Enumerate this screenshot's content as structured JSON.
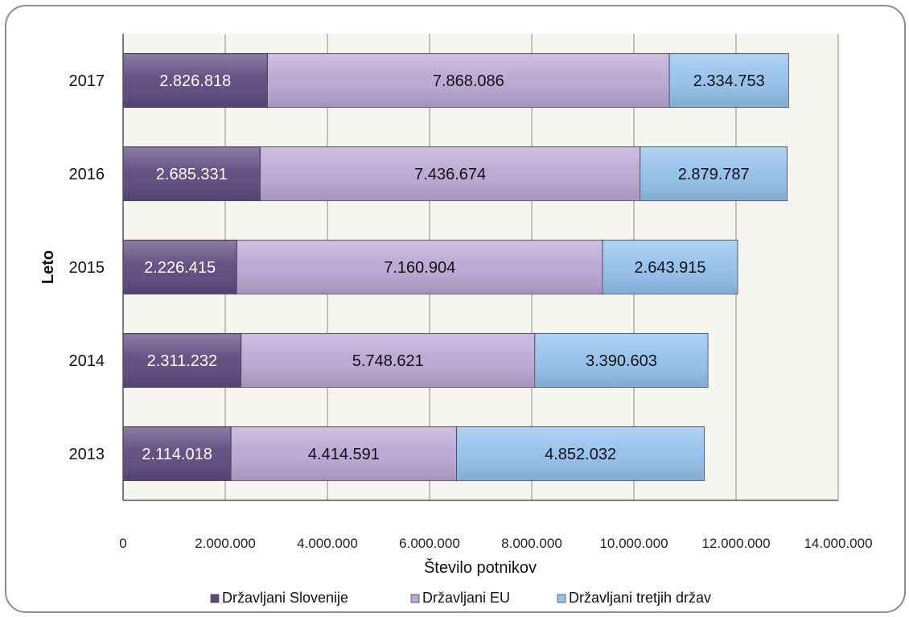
{
  "chart_data": {
    "type": "bar",
    "orientation": "horizontal",
    "stacked": true,
    "categories": [
      "2013",
      "2014",
      "2015",
      "2016",
      "2017"
    ],
    "series": [
      {
        "name": "Državljani Slovenije",
        "color": "#5e4a80",
        "label_color": "#ffffff",
        "values": [
          2114018,
          2311232,
          2226415,
          2685331,
          2826818
        ],
        "labels": [
          "2.114.018",
          "2.311.232",
          "2.226.415",
          "2.685.331",
          "2.826.818"
        ]
      },
      {
        "name": "Državljani EU",
        "color": "#bba6d3",
        "label_color": "#111111",
        "values": [
          4414591,
          5748621,
          7160904,
          7436674,
          7868086
        ],
        "labels": [
          "4.414.591",
          "5.748.621",
          "7.160.904",
          "7.436.674",
          "7.868.086"
        ]
      },
      {
        "name": "Državljani tretjih držav",
        "color": "#94c0ec",
        "label_color": "#111111",
        "values": [
          4852032,
          3390603,
          2643915,
          2879787,
          2334753
        ],
        "labels": [
          "4.852.032",
          "3.390.603",
          "2.643.915",
          "2.879.787",
          "2.334.753"
        ]
      }
    ],
    "xlabel": "Število potnikov",
    "ylabel": "Leto",
    "xlim": [
      0,
      14000000
    ],
    "xticks": [
      0,
      2000000,
      4000000,
      6000000,
      8000000,
      10000000,
      12000000,
      14000000
    ],
    "xtick_labels": [
      "0",
      "2.000.000",
      "4.000.000",
      "6.000.000",
      "8.000.000",
      "10.000.000",
      "12.000.000",
      "14.000.000"
    ],
    "grid": "vertical",
    "plot_background": "#f6f5f0",
    "legend_position": "bottom"
  }
}
